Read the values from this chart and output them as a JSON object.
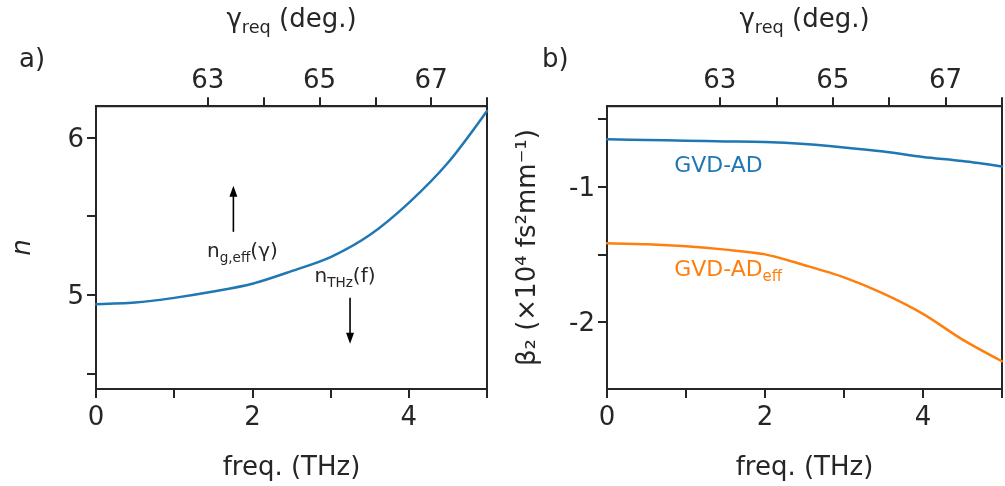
{
  "chart_data": [
    {
      "type": "line",
      "title": "a)",
      "xlabel": "freq. (THz)",
      "ylabel": "n",
      "x2label": "γ$_{req}$ (deg.)",
      "marker": "none",
      "x": [
        0,
        0.5,
        1,
        1.5,
        2,
        2.5,
        3,
        3.5,
        4,
        4.5,
        5
      ],
      "series": [
        {
          "color": "#1f77b4",
          "values": [
            4.94,
            4.95,
            4.98,
            5.02,
            5.07,
            5.15,
            5.24,
            5.38,
            5.585,
            5.84,
            6.17
          ]
        }
      ],
      "xlim": [
        0,
        5
      ],
      "xticks": [
        0,
        {
          "value": 1,
          "label": null
        },
        2,
        {
          "value": 3,
          "label": null
        },
        4,
        {
          "value": 5,
          "label": null
        }
      ],
      "ylim": [
        4.4,
        6.2
      ],
      "yticks": [
        {
          "value": 4.5,
          "label": null
        },
        5,
        {
          "value": 5.5,
          "label": null
        },
        6
      ],
      "x2lim": [
        61,
        68
      ],
      "x2ticks": [
        63,
        {
          "value": 64,
          "label": null
        },
        65,
        {
          "value": 66,
          "label": null
        },
        67,
        {
          "value": 68,
          "label": null
        }
      ],
      "annotations": [
        "n$_{g,eff}$(γ)",
        "n$_{THz}$(f)"
      ]
    },
    {
      "type": "line",
      "title": "b)",
      "xlabel": "freq. (THz)",
      "ylabel": "β₂ (×10⁴ fs²mm⁻¹)",
      "x2label": "γ$_{req}$ (deg.)",
      "marker": "none",
      "x": [
        0,
        0.5,
        1,
        1.5,
        2,
        2.5,
        3,
        3.5,
        4,
        4.5,
        5
      ],
      "series": [
        {
          "name": "GVD-AD",
          "color": "#1f77b4",
          "values": [
            -0.65,
            -0.655,
            -0.66,
            -0.665,
            -0.67,
            -0.685,
            -0.71,
            -0.74,
            -0.78,
            -0.81,
            -0.85
          ]
        },
        {
          "name": "GVD-AD$_{eff}$",
          "color": "#ff7f0e",
          "values": [
            -1.417,
            -1.425,
            -1.44,
            -1.465,
            -1.5,
            -1.58,
            -1.67,
            -1.79,
            -1.94,
            -2.13,
            -2.29
          ]
        }
      ],
      "xlim": [
        0,
        5
      ],
      "xticks": [
        0,
        {
          "value": 1,
          "label": null
        },
        2,
        {
          "value": 3,
          "label": null
        },
        4,
        {
          "value": 5,
          "label": null
        }
      ],
      "ylim": [
        -2.495,
        -0.405
      ],
      "yticks": [
        {
          "value": -2,
          "label": "-2"
        },
        {
          "value": -1.5,
          "label": null
        },
        {
          "value": -1,
          "label": "-1"
        },
        {
          "value": -0.5,
          "label": null
        }
      ],
      "x2lim": [
        61,
        68
      ],
      "x2ticks": [
        63,
        {
          "value": 64,
          "label": null
        },
        65,
        {
          "value": 66,
          "label": null
        },
        67,
        {
          "value": 68,
          "label": null
        }
      ]
    }
  ]
}
